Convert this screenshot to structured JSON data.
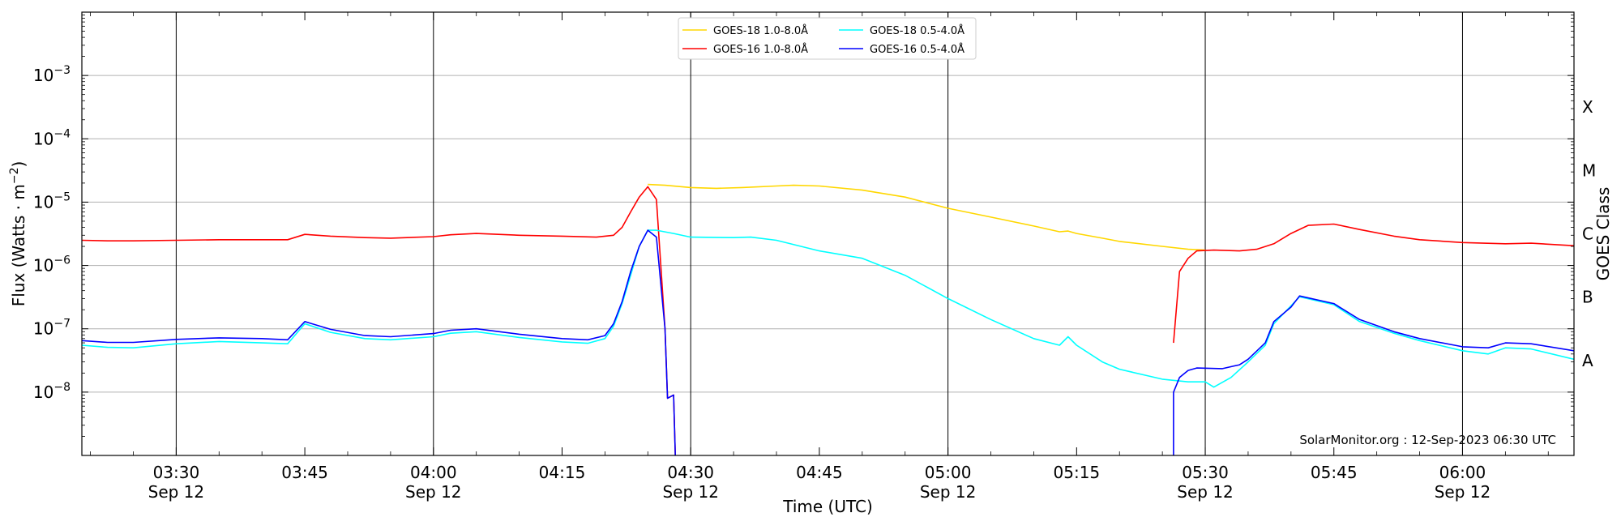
{
  "chart_data": {
    "type": "line",
    "xlabel": "Time (UTC)",
    "ylabel": "Flux (Watts · m⁻²)",
    "y2label": "GOES Class",
    "yscale": "log",
    "xlim": [
      "03:19",
      "06:13"
    ],
    "ylim": [
      1e-09,
      0.01
    ],
    "grid": "horizontal major lines and vertical lines at half-hour marks",
    "legend_placement": "top-center, 2 columns",
    "credit": "SolarMonitor.org : 12-Sep-2023 06:30 UTC",
    "y_ticks": [
      {
        "value": 1e-08,
        "base": "10",
        "exp": "−8"
      },
      {
        "value": 1e-07,
        "base": "10",
        "exp": "−7"
      },
      {
        "value": 1e-06,
        "base": "10",
        "exp": "−6"
      },
      {
        "value": 1e-05,
        "base": "10",
        "exp": "−5"
      },
      {
        "value": 0.0001,
        "base": "10",
        "exp": "−4"
      },
      {
        "value": 0.001,
        "base": "10",
        "exp": "−3"
      }
    ],
    "x_ticks": [
      {
        "time": "03:30",
        "label": "03:30",
        "date": "Sep 12",
        "vline": true
      },
      {
        "time": "03:45",
        "label": "03:45",
        "date": "",
        "vline": false
      },
      {
        "time": "04:00",
        "label": "04:00",
        "date": "Sep 12",
        "vline": true
      },
      {
        "time": "04:15",
        "label": "04:15",
        "date": "",
        "vline": false
      },
      {
        "time": "04:30",
        "label": "04:30",
        "date": "Sep 12",
        "vline": true
      },
      {
        "time": "04:45",
        "label": "04:45",
        "date": "",
        "vline": false
      },
      {
        "time": "05:00",
        "label": "05:00",
        "date": "Sep 12",
        "vline": true
      },
      {
        "time": "05:15",
        "label": "05:15",
        "date": "",
        "vline": false
      },
      {
        "time": "05:30",
        "label": "05:30",
        "date": "Sep 12",
        "vline": true
      },
      {
        "time": "05:45",
        "label": "05:45",
        "date": "",
        "vline": false
      },
      {
        "time": "06:00",
        "label": "06:00",
        "date": "Sep 12",
        "vline": true
      }
    ],
    "goes_classes": [
      {
        "label": "A",
        "value": 3.16e-08
      },
      {
        "label": "B",
        "value": 3.16e-07
      },
      {
        "label": "C",
        "value": 3.16e-06
      },
      {
        "label": "M",
        "value": 3.16e-05
      },
      {
        "label": "X",
        "value": 0.000316
      }
    ],
    "series": [
      {
        "name": "GOES-18 1.0-8.0Å",
        "color": "#ffd700",
        "points": [
          [
            "04:25",
            1.9e-05
          ],
          [
            "04:27",
            1.85e-05
          ],
          [
            "04:30",
            1.7e-05
          ],
          [
            "04:33",
            1.65e-05
          ],
          [
            "04:36",
            1.7e-05
          ],
          [
            "04:40",
            1.8e-05
          ],
          [
            "04:42",
            1.85e-05
          ],
          [
            "04:45",
            1.8e-05
          ],
          [
            "04:50",
            1.55e-05
          ],
          [
            "04:55",
            1.2e-05
          ],
          [
            "05:00",
            8e-06
          ],
          [
            "05:05",
            5.8e-06
          ],
          [
            "05:10",
            4.2e-06
          ],
          [
            "05:13",
            3.4e-06
          ],
          [
            "05:14",
            3.5e-06
          ],
          [
            "05:15",
            3.2e-06
          ],
          [
            "05:18",
            2.7e-06
          ],
          [
            "05:20",
            2.4e-06
          ],
          [
            "05:25",
            2e-06
          ],
          [
            "05:28",
            1.8e-06
          ],
          [
            "05:30",
            1.75e-06
          ]
        ]
      },
      {
        "name": "GOES-16 1.0-8.0Å",
        "color": "#ff0000",
        "points": [
          [
            "03:19",
            2.5e-06
          ],
          [
            "03:22",
            2.45e-06
          ],
          [
            "03:25",
            2.45e-06
          ],
          [
            "03:30",
            2.5e-06
          ],
          [
            "03:35",
            2.55e-06
          ],
          [
            "03:40",
            2.55e-06
          ],
          [
            "03:43",
            2.55e-06
          ],
          [
            "03:45",
            3.1e-06
          ],
          [
            "03:48",
            2.9e-06
          ],
          [
            "03:52",
            2.75e-06
          ],
          [
            "03:55",
            2.7e-06
          ],
          [
            "04:00",
            2.85e-06
          ],
          [
            "04:02",
            3.05e-06
          ],
          [
            "04:05",
            3.2e-06
          ],
          [
            "04:10",
            3e-06
          ],
          [
            "04:15",
            2.9e-06
          ],
          [
            "04:19",
            2.8e-06
          ],
          [
            "04:21",
            3e-06
          ],
          [
            "04:22",
            4e-06
          ],
          [
            "04:23",
            7e-06
          ],
          [
            "04:24",
            1.2e-05
          ],
          [
            "04:25",
            1.75e-05
          ],
          [
            "04:26",
            1.1e-05
          ],
          [
            "04:27",
            1e-07
          ],
          [
            "04:27.3",
            8e-09
          ],
          [
            "04:28",
            9e-09
          ],
          [
            "04:28.2",
            1e-09
          ],
          "gap",
          [
            "05:26.3",
            6e-08
          ],
          [
            "05:27",
            8e-07
          ],
          [
            "05:28",
            1.3e-06
          ],
          [
            "05:29",
            1.7e-06
          ],
          [
            "05:31",
            1.75e-06
          ],
          [
            "05:34",
            1.7e-06
          ],
          [
            "05:36",
            1.8e-06
          ],
          [
            "05:38",
            2.2e-06
          ],
          [
            "05:40",
            3.2e-06
          ],
          [
            "05:42",
            4.3e-06
          ],
          [
            "05:45",
            4.5e-06
          ],
          [
            "05:48",
            3.7e-06
          ],
          [
            "05:52",
            2.9e-06
          ],
          [
            "05:55",
            2.55e-06
          ],
          [
            "06:00",
            2.3e-06
          ],
          [
            "06:05",
            2.2e-06
          ],
          [
            "06:08",
            2.25e-06
          ],
          [
            "06:13",
            2.05e-06
          ]
        ]
      },
      {
        "name": "GOES-18 0.5-4.0Å",
        "color": "#00ffff",
        "points": [
          [
            "03:19",
            5.5e-08
          ],
          [
            "03:22",
            5.1e-08
          ],
          [
            "03:25",
            5e-08
          ],
          [
            "03:30",
            5.8e-08
          ],
          [
            "03:35",
            6.3e-08
          ],
          [
            "03:40",
            6e-08
          ],
          [
            "03:43",
            5.8e-08
          ],
          [
            "03:45",
            1.2e-07
          ],
          [
            "03:48",
            8.8e-08
          ],
          [
            "03:52",
            7e-08
          ],
          [
            "03:55",
            6.7e-08
          ],
          [
            "04:00",
            7.5e-08
          ],
          [
            "04:02",
            8.5e-08
          ],
          [
            "04:05",
            9e-08
          ],
          [
            "04:10",
            7.3e-08
          ],
          [
            "04:15",
            6.2e-08
          ],
          [
            "04:18",
            5.9e-08
          ],
          [
            "04:20",
            7e-08
          ],
          [
            "04:21",
            1.1e-07
          ],
          [
            "04:22",
            2.5e-07
          ],
          [
            "04:23",
            7e-07
          ],
          [
            "04:24",
            2e-06
          ],
          [
            "04:25",
            3.6e-06
          ],
          [
            "04:26",
            3.6e-06
          ],
          [
            "04:28",
            3.2e-06
          ],
          [
            "04:30",
            2.8e-06
          ],
          [
            "04:35",
            2.75e-06
          ],
          [
            "04:37",
            2.8e-06
          ],
          [
            "04:40",
            2.5e-06
          ],
          [
            "04:45",
            1.7e-06
          ],
          [
            "04:50",
            1.3e-06
          ],
          [
            "04:55",
            7e-07
          ],
          [
            "05:00",
            3e-07
          ],
          [
            "05:05",
            1.4e-07
          ],
          [
            "05:10",
            7e-08
          ],
          [
            "05:13",
            5.5e-08
          ],
          [
            "05:14",
            7.5e-08
          ],
          [
            "05:15",
            5.5e-08
          ],
          [
            "05:18",
            3e-08
          ],
          [
            "05:20",
            2.3e-08
          ],
          [
            "05:25",
            1.6e-08
          ],
          [
            "05:28",
            1.45e-08
          ],
          [
            "05:30",
            1.45e-08
          ],
          [
            "05:31",
            1.2e-08
          ],
          [
            "05:33",
            1.7e-08
          ],
          [
            "05:35",
            3e-08
          ],
          [
            "05:37",
            5.5e-08
          ],
          [
            "05:38",
            1.2e-07
          ],
          [
            "05:40",
            2.3e-07
          ],
          [
            "05:41",
            3.2e-07
          ],
          [
            "05:45",
            2.4e-07
          ],
          [
            "05:48",
            1.3e-07
          ],
          [
            "05:52",
            8.5e-08
          ],
          [
            "05:55",
            6.5e-08
          ],
          [
            "06:00",
            4.5e-08
          ],
          [
            "06:03",
            4e-08
          ],
          [
            "06:05",
            5e-08
          ],
          [
            "06:08",
            4.8e-08
          ],
          [
            "06:13",
            3.3e-08
          ]
        ]
      },
      {
        "name": "GOES-16 0.5-4.0Å",
        "color": "#0000ff",
        "points": [
          [
            "03:19",
            6.5e-08
          ],
          [
            "03:22",
            6.1e-08
          ],
          [
            "03:25",
            6.1e-08
          ],
          [
            "03:30",
            6.8e-08
          ],
          [
            "03:35",
            7.2e-08
          ],
          [
            "03:40",
            7e-08
          ],
          [
            "03:43",
            6.7e-08
          ],
          [
            "03:45",
            1.3e-07
          ],
          [
            "03:48",
            9.8e-08
          ],
          [
            "03:52",
            7.8e-08
          ],
          [
            "03:55",
            7.5e-08
          ],
          [
            "04:00",
            8.4e-08
          ],
          [
            "04:02",
            9.5e-08
          ],
          [
            "04:05",
            1e-07
          ],
          [
            "04:10",
            8.2e-08
          ],
          [
            "04:15",
            7e-08
          ],
          [
            "04:18",
            6.7e-08
          ],
          [
            "04:20",
            7.8e-08
          ],
          [
            "04:21",
            1.2e-07
          ],
          [
            "04:22",
            2.7e-07
          ],
          [
            "04:23",
            8e-07
          ],
          [
            "04:24",
            2e-06
          ],
          [
            "04:25",
            3.6e-06
          ],
          [
            "04:26",
            2.8e-06
          ],
          [
            "04:27",
            1e-07
          ],
          [
            "04:27.3",
            8e-09
          ],
          [
            "04:28",
            9e-09
          ],
          [
            "04:28.2",
            1e-09
          ],
          "gap",
          [
            "05:26.3",
            1e-09
          ],
          [
            "05:26.3",
            1e-08
          ],
          [
            "05:27",
            1.7e-08
          ],
          [
            "05:28",
            2.2e-08
          ],
          [
            "05:29",
            2.4e-08
          ],
          [
            "05:32",
            2.35e-08
          ],
          [
            "05:34",
            2.7e-08
          ],
          [
            "05:35",
            3.3e-08
          ],
          [
            "05:37",
            6e-08
          ],
          [
            "05:38",
            1.3e-07
          ],
          [
            "05:40",
            2.2e-07
          ],
          [
            "05:41",
            3.3e-07
          ],
          [
            "05:45",
            2.5e-07
          ],
          [
            "05:48",
            1.4e-07
          ],
          [
            "05:52",
            9e-08
          ],
          [
            "05:55",
            7e-08
          ],
          [
            "06:00",
            5.2e-08
          ],
          [
            "06:03",
            5e-08
          ],
          [
            "06:05",
            6e-08
          ],
          [
            "06:08",
            5.8e-08
          ],
          [
            "06:13",
            4.5e-08
          ]
        ]
      }
    ]
  }
}
